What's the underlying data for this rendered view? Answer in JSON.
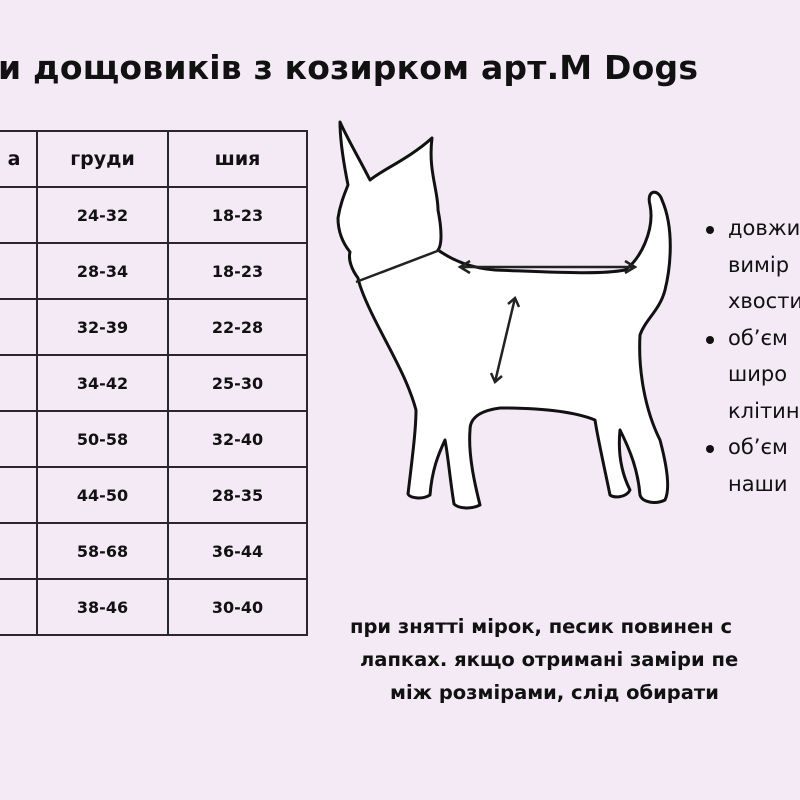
{
  "title": "и дощовиків з козирком арт.M Dogs",
  "table": {
    "headers": [
      "а",
      "груди",
      "шия"
    ],
    "rows": [
      [
        "",
        "24-32",
        "18-23"
      ],
      [
        "",
        "28-34",
        "18-23"
      ],
      [
        "",
        "32-39",
        "22-28"
      ],
      [
        "",
        "34-42",
        "25-30"
      ],
      [
        "",
        "50-58",
        "32-40"
      ],
      [
        "",
        "44-50",
        "28-35"
      ],
      [
        "",
        "58-68",
        "36-44"
      ],
      [
        "",
        "38-46",
        "30-40"
      ]
    ]
  },
  "bullets": [
    {
      "lines": [
        "довжи",
        "вимір",
        "хвости"
      ]
    },
    {
      "lines": [
        "об’єм",
        "широ",
        "клітин"
      ]
    },
    {
      "lines": [
        "об’єм",
        "наши"
      ]
    }
  ],
  "note": {
    "lines": [
      "при знятті мірок, песик повинен с",
      "лапках. якщо отримані заміри пе",
      "між розмірами, слід обирати"
    ]
  },
  "colors": {
    "background": "#f3eaf6",
    "text": "#111111",
    "border": "#2a2630"
  }
}
